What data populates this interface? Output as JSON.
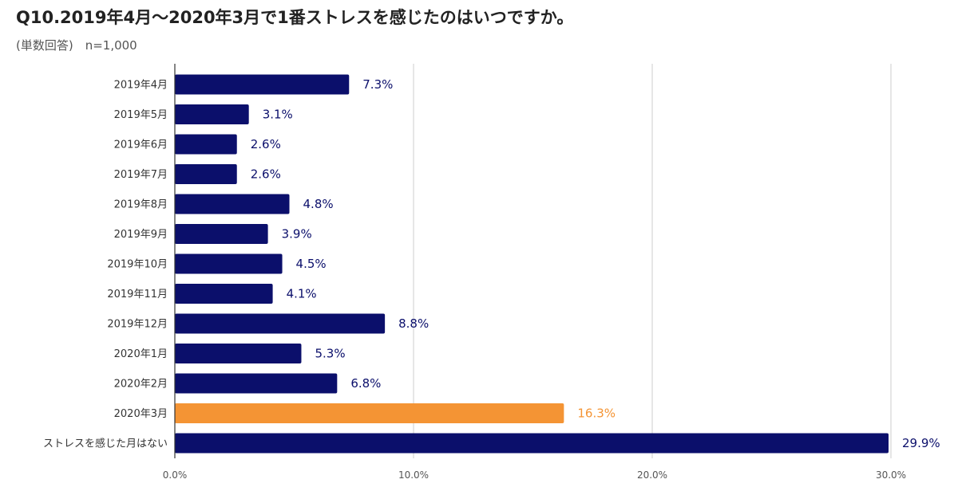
{
  "chart_data": {
    "type": "bar",
    "orientation": "horizontal",
    "title": "Q10.2019年4月～2020年3月で1番ストレスを感じたのはいつですか。",
    "subtitle": "(単数回答)　n=1,000",
    "categories": [
      "2019年4月",
      "2019年5月",
      "2019年6月",
      "2019年7月",
      "2019年8月",
      "2019年9月",
      "2019年10月",
      "2019年11月",
      "2019年12月",
      "2020年1月",
      "2020年2月",
      "2020年3月",
      "ストレスを感じた月はない"
    ],
    "values": [
      7.3,
      3.1,
      2.6,
      2.6,
      4.8,
      3.9,
      4.5,
      4.1,
      8.8,
      5.3,
      6.8,
      16.3,
      29.9
    ],
    "value_labels": [
      "7.3%",
      "3.1%",
      "2.6%",
      "2.6%",
      "4.8%",
      "3.9%",
      "4.5%",
      "4.1%",
      "8.8%",
      "5.3%",
      "6.8%",
      "16.3%",
      "29.9%"
    ],
    "highlight_category": "2020年3月",
    "xlim": [
      0,
      30
    ],
    "x_ticks": [
      0,
      10,
      20,
      30
    ],
    "x_tick_labels": [
      "0.0%",
      "10.0%",
      "20.0%",
      "30.0%"
    ],
    "grid": "vertical",
    "xlabel": "",
    "ylabel": "",
    "colors": {
      "bar": "#0b0f6b",
      "highlight": "#f49434",
      "label": "#0b0f6b",
      "highlight_label": "#f49434",
      "grid": "#cccccc",
      "axis": "#333333"
    }
  }
}
